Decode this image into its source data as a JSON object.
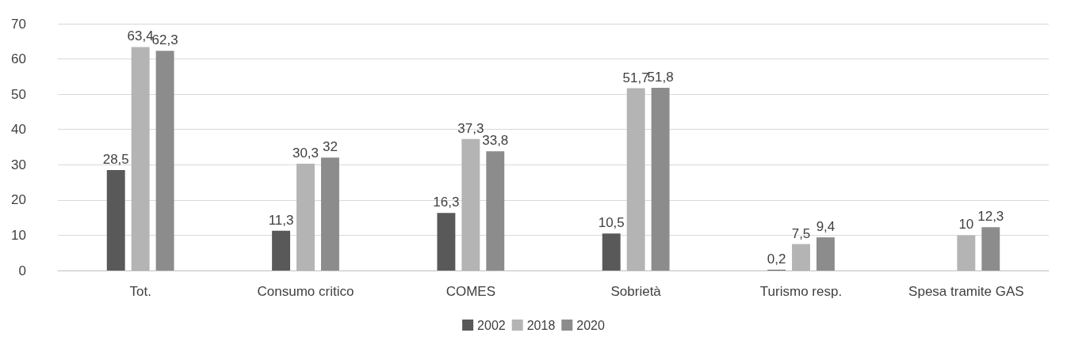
{
  "chart_data": {
    "type": "bar",
    "categories": [
      "Tot.",
      "Consumo critico",
      "COMES",
      "Sobrietà",
      "Turismo resp.",
      "Spesa tramite GAS"
    ],
    "series": [
      {
        "name": "2002",
        "color": "#595959",
        "values": [
          28.5,
          11.3,
          16.3,
          10.5,
          0.2,
          null
        ],
        "value_labels": [
          "28,5",
          "11,3",
          "16,3",
          "10,5",
          "0,2",
          null
        ]
      },
      {
        "name": "2018",
        "color": "#b4b4b4",
        "values": [
          63.4,
          30.3,
          37.3,
          51.7,
          7.5,
          10
        ],
        "value_labels": [
          "63,4",
          "30,3",
          "37,3",
          "51,7",
          "7,5",
          "10"
        ]
      },
      {
        "name": "2020",
        "color": "#8c8c8c",
        "values": [
          62.3,
          32,
          33.8,
          51.8,
          9.4,
          12.3
        ],
        "value_labels": [
          "62,3",
          "32",
          "33,8",
          "51,8",
          "9,4",
          "12,3"
        ]
      }
    ],
    "ylim": [
      0,
      70
    ],
    "yticks": [
      0,
      10,
      20,
      30,
      40,
      50,
      60,
      70
    ],
    "grid": "y",
    "legend": "bottom"
  }
}
